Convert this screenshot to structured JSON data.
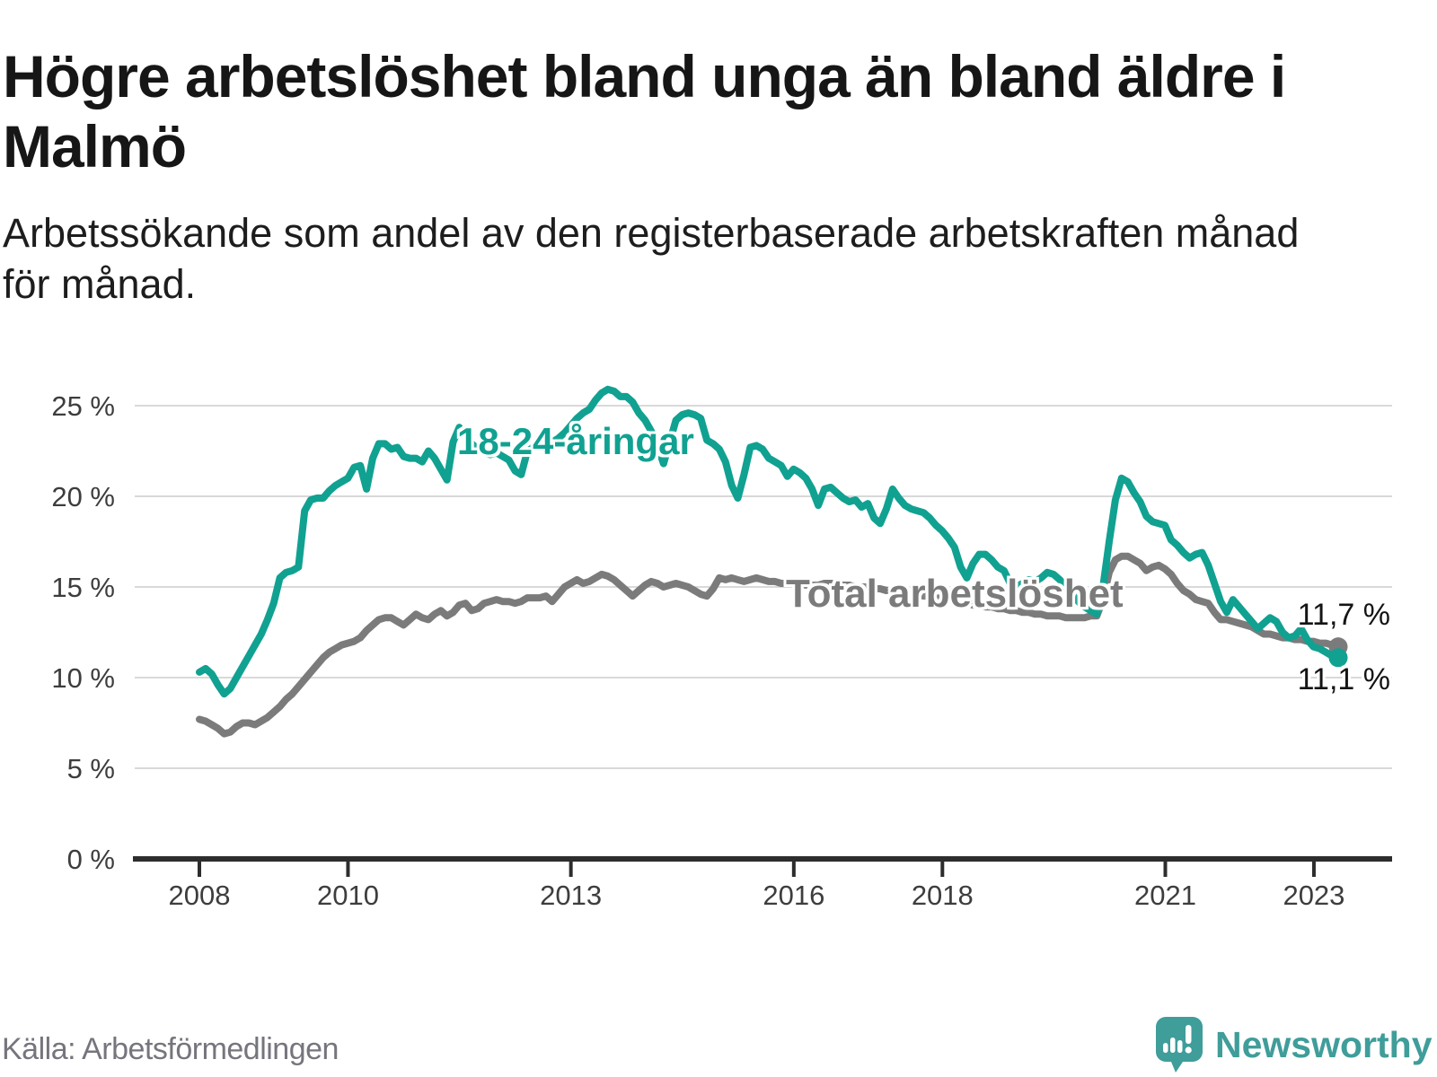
{
  "header": {
    "title": "Högre arbetslöshet bland unga än bland äldre i Malmö",
    "subtitle": "Arbetssökande som andel av den registerbaserade arbetskraften månad för månad."
  },
  "chart_data": {
    "type": "line",
    "unit": "%",
    "start_month": "2008-01",
    "end_month": "2023-05",
    "ylim": [
      0,
      26
    ],
    "grid": true,
    "grid_color": "#d9d9d9",
    "axis_color": "#2d2d2d",
    "axis_text_color": "#3d3d3d",
    "y_ticks": [
      {
        "value": 0,
        "label": "0 %"
      },
      {
        "value": 5,
        "label": "5 %"
      },
      {
        "value": 10,
        "label": "10 %"
      },
      {
        "value": 15,
        "label": "15 %"
      },
      {
        "value": 20,
        "label": "20 %"
      },
      {
        "value": 25,
        "label": "25 %"
      }
    ],
    "x_ticks": [
      {
        "year": 2008,
        "label": "2008"
      },
      {
        "year": 2010,
        "label": "2010"
      },
      {
        "year": 2013,
        "label": "2013"
      },
      {
        "year": 2016,
        "label": "2016"
      },
      {
        "year": 2018,
        "label": "2018"
      },
      {
        "year": 2021,
        "label": "2021"
      },
      {
        "year": 2023,
        "label": "2023"
      }
    ],
    "series": [
      {
        "id": "youth",
        "name": "18-24-åringar",
        "label": "18-24-åringar",
        "end_label": "11,1 %",
        "color": "#10a191",
        "values": [
          10.3,
          10.5,
          10.2,
          9.6,
          9.1,
          9.4,
          10.0,
          10.6,
          11.2,
          11.8,
          12.4,
          13.2,
          14.1,
          15.5,
          15.8,
          15.9,
          16.1,
          19.2,
          19.8,
          19.9,
          19.9,
          20.3,
          20.6,
          20.8,
          21.0,
          21.6,
          21.7,
          20.4,
          22.1,
          22.9,
          22.9,
          22.6,
          22.7,
          22.2,
          22.1,
          22.1,
          21.9,
          22.5,
          22.1,
          21.5,
          20.9,
          23.0,
          23.8,
          23.3,
          22.9,
          22.6,
          22.4,
          22.3,
          22.4,
          22.2,
          22.0,
          21.4,
          21.2,
          22.5,
          23.0,
          22.8,
          22.9,
          23.0,
          23.2,
          23.5,
          23.9,
          24.3,
          24.6,
          24.8,
          25.3,
          25.7,
          25.9,
          25.8,
          25.5,
          25.5,
          25.2,
          24.6,
          24.2,
          23.6,
          22.8,
          21.8,
          23.0,
          24.2,
          24.5,
          24.6,
          24.5,
          24.3,
          23.1,
          22.9,
          22.6,
          21.9,
          20.6,
          19.9,
          21.2,
          22.7,
          22.8,
          22.6,
          22.1,
          21.9,
          21.7,
          21.1,
          21.5,
          21.3,
          21.0,
          20.4,
          19.5,
          20.4,
          20.5,
          20.2,
          19.9,
          19.7,
          19.8,
          19.4,
          19.6,
          18.8,
          18.5,
          19.3,
          20.4,
          19.9,
          19.5,
          19.3,
          19.2,
          19.1,
          18.8,
          18.4,
          18.1,
          17.7,
          17.2,
          16.1,
          15.5,
          16.3,
          16.8,
          16.8,
          16.5,
          16.1,
          15.9,
          15.2,
          15.0,
          15.2,
          15.4,
          15.3,
          15.5,
          15.8,
          15.7,
          15.4,
          15.0,
          14.6,
          14.2,
          13.9,
          13.7,
          13.5,
          15.0,
          17.5,
          19.8,
          21.0,
          20.8,
          20.2,
          19.7,
          18.9,
          18.6,
          18.5,
          18.4,
          17.6,
          17.3,
          16.9,
          16.6,
          16.8,
          16.9,
          16.2,
          15.2,
          14.2,
          13.6,
          14.3,
          13.9,
          13.5,
          13.1,
          12.7,
          13.0,
          13.3,
          13.1,
          12.5,
          12.2,
          12.3,
          12.7,
          12.1,
          11.7,
          11.6,
          11.4,
          11.2,
          11.1
        ]
      },
      {
        "id": "total",
        "name": "Total arbetslöshet",
        "label": "Total arbetslöshet",
        "end_label": "11,7 %",
        "color": "#7b7b7b",
        "values": [
          7.7,
          7.6,
          7.4,
          7.2,
          6.9,
          7.0,
          7.3,
          7.5,
          7.5,
          7.4,
          7.6,
          7.8,
          8.1,
          8.4,
          8.8,
          9.1,
          9.5,
          9.9,
          10.3,
          10.7,
          11.1,
          11.4,
          11.6,
          11.8,
          11.9,
          12.0,
          12.2,
          12.6,
          12.9,
          13.2,
          13.3,
          13.3,
          13.1,
          12.9,
          13.2,
          13.5,
          13.3,
          13.2,
          13.5,
          13.7,
          13.4,
          13.6,
          14.0,
          14.1,
          13.7,
          13.8,
          14.1,
          14.2,
          14.3,
          14.2,
          14.2,
          14.1,
          14.2,
          14.4,
          14.4,
          14.4,
          14.5,
          14.2,
          14.6,
          15.0,
          15.2,
          15.4,
          15.2,
          15.3,
          15.5,
          15.7,
          15.6,
          15.4,
          15.1,
          14.8,
          14.5,
          14.8,
          15.1,
          15.3,
          15.2,
          15.0,
          15.1,
          15.2,
          15.1,
          15.0,
          14.8,
          14.6,
          14.5,
          14.9,
          15.5,
          15.4,
          15.5,
          15.4,
          15.3,
          15.4,
          15.5,
          15.4,
          15.3,
          15.3,
          15.2,
          15.2,
          15.2,
          15.2,
          15.1,
          15.1,
          15.1,
          15.2,
          15.2,
          15.2,
          15.1,
          15.1,
          15.0,
          15.0,
          15.0,
          14.9,
          14.9,
          14.8,
          14.8,
          14.7,
          14.7,
          14.6,
          14.6,
          14.5,
          14.5,
          14.4,
          14.4,
          14.3,
          14.2,
          14.1,
          14.1,
          14.0,
          14.0,
          13.9,
          13.9,
          13.8,
          13.8,
          13.7,
          13.7,
          13.6,
          13.6,
          13.5,
          13.5,
          13.4,
          13.4,
          13.4,
          13.3,
          13.3,
          13.3,
          13.3,
          13.4,
          13.4,
          14.3,
          15.8,
          16.5,
          16.7,
          16.7,
          16.5,
          16.3,
          15.9,
          16.1,
          16.2,
          16.0,
          15.7,
          15.2,
          14.8,
          14.6,
          14.3,
          14.2,
          14.1,
          13.6,
          13.2,
          13.2,
          13.1,
          13.0,
          12.9,
          12.8,
          12.6,
          12.4,
          12.4,
          12.3,
          12.2,
          12.2,
          12.1,
          12.1,
          12.0,
          12.0,
          11.9,
          11.9,
          11.8,
          11.7
        ]
      }
    ]
  },
  "footer": {
    "source": "Källa: Arbetsförmedlingen",
    "brand": "Newsworthy",
    "brand_color": "#3f9d9a"
  }
}
